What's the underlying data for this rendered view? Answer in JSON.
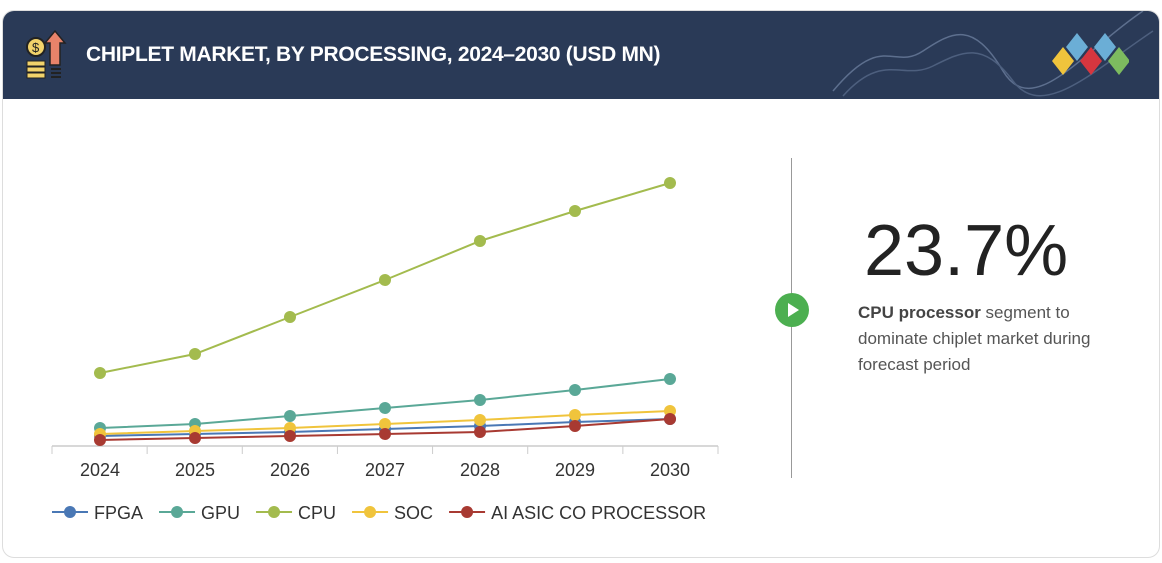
{
  "header": {
    "title": "CHIPLET MARKET, BY PROCESSING, 2024–2030 (USD MN)",
    "icon": "money-growth-icon",
    "logo": "colored-diamonds-logo"
  },
  "highlight": {
    "value": "23.7%",
    "bold": "CPU processor",
    "text": " segment to dominate chiplet market during forecast period",
    "icon": "play-icon"
  },
  "chart_data": {
    "type": "line",
    "title": "CHIPLET MARKET, BY PROCESSING, 2024–2030 (USD MN)",
    "xlabel": "",
    "ylabel": "",
    "categories": [
      "2024",
      "2025",
      "2026",
      "2027",
      "2028",
      "2029",
      "2030"
    ],
    "ylim": [
      0,
      280
    ],
    "grid": false,
    "legend": "bottom",
    "series": [
      {
        "name": "FPGA",
        "color": "#4a78b5",
        "values": [
          10,
          12,
          14,
          17,
          20,
          24,
          27
        ]
      },
      {
        "name": "GPU",
        "color": "#5aa897",
        "values": [
          18,
          22,
          30,
          38,
          46,
          56,
          67
        ]
      },
      {
        "name": "CPU",
        "color": "#a3bb4e",
        "values": [
          73,
          92,
          129,
          166,
          205,
          235,
          263
        ]
      },
      {
        "name": "SOC",
        "color": "#f0c43c",
        "values": [
          12,
          15,
          18,
          22,
          26,
          31,
          35
        ]
      },
      {
        "name": "AI ASIC CO PROCESSOR",
        "color": "#a83a32",
        "values": [
          6,
          8,
          10,
          12,
          14,
          20,
          27
        ]
      }
    ]
  }
}
